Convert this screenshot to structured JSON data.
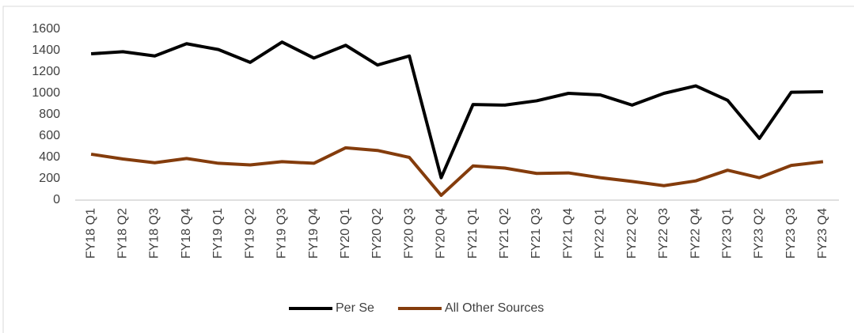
{
  "chart_data": {
    "type": "line",
    "categories": [
      "FY18 Q1",
      "FY18 Q2",
      "FY18 Q3",
      "FY18 Q4",
      "FY19 Q1",
      "FY19 Q2",
      "FY19 Q3",
      "FY19 Q4",
      "FY20 Q1",
      "FY20 Q2",
      "FY20 Q3",
      "FY20 Q4",
      "FY21 Q1",
      "FY21 Q2",
      "FY21 Q3",
      "FY21 Q4",
      "FY22 Q1",
      "FY22 Q2",
      "FY22 Q3",
      "FY22 Q4",
      "FY23 Q1",
      "FY23 Q2",
      "FY23 Q3",
      "FY23 Q4"
    ],
    "series": [
      {
        "name": "Per Se",
        "color": "#000000",
        "values": [
          1370,
          1390,
          1350,
          1465,
          1410,
          1290,
          1480,
          1330,
          1450,
          1265,
          1350,
          210,
          895,
          890,
          930,
          1000,
          985,
          890,
          1000,
          1070,
          935,
          578,
          1010,
          1015
        ]
      },
      {
        "name": "All Other Sources",
        "color": "#843c0c",
        "values": [
          430,
          385,
          350,
          390,
          345,
          330,
          360,
          345,
          490,
          465,
          400,
          45,
          320,
          300,
          250,
          255,
          210,
          175,
          135,
          180,
          280,
          210,
          325,
          360
        ]
      }
    ],
    "ylim": [
      0,
      1600
    ],
    "yticks": [
      0,
      200,
      400,
      600,
      800,
      1000,
      1200,
      1400,
      1600
    ],
    "grid": false,
    "legend": "bottom"
  }
}
